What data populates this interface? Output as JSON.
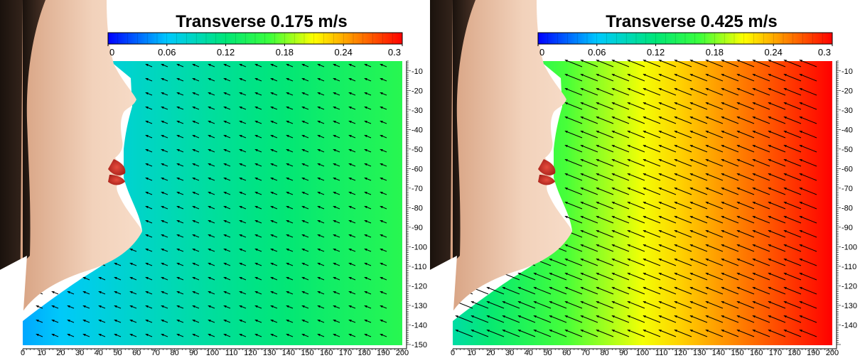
{
  "chart_data": [
    {
      "type": "heatmap",
      "title": "Transverse 0.175 m/s",
      "colorbar": {
        "ticks": [
          "0",
          "0.06",
          "0.12",
          "0.18",
          "0.24",
          "0.3"
        ],
        "range": [
          0,
          0.3
        ]
      },
      "x_ticks": [
        "0",
        "10",
        "20",
        "30",
        "40",
        "50",
        "60",
        "70",
        "80",
        "90",
        "100",
        "110",
        "120",
        "130",
        "140",
        "150",
        "160",
        "170",
        "180",
        "190",
        "200"
      ],
      "y_ticks": [
        "-10",
        "-20",
        "-30",
        "-40",
        "-50",
        "-60",
        "-70",
        "-80",
        "-90",
        "-100",
        "-110",
        "-120",
        "-130",
        "-140",
        "-150"
      ],
      "xlim": [
        0,
        200
      ],
      "ylim": [
        -150,
        -5
      ],
      "field_velocity_range": [
        0.05,
        0.15
      ],
      "vector_field": "arrows pointing up-left toward the nose, short magnitude",
      "colors": [
        "#0000ff",
        "#00c8ff",
        "#00ff60",
        "#ffff00",
        "#ff8000",
        "#ff0000"
      ]
    },
    {
      "type": "heatmap",
      "title": "Transverse 0.425 m/s",
      "colorbar": {
        "ticks": [
          "0",
          "0.06",
          "0.12",
          "0.18",
          "0.24",
          "0.3"
        ],
        "range": [
          0,
          0.3
        ]
      },
      "x_ticks": [
        "0",
        "10",
        "20",
        "30",
        "40",
        "50",
        "60",
        "70",
        "80",
        "90",
        "100",
        "110",
        "120",
        "130",
        "140",
        "150",
        "160",
        "170",
        "180",
        "190",
        "200"
      ],
      "y_ticks": [
        "-10",
        "-20",
        "-30",
        "-40",
        "-50",
        "-60",
        "-70",
        "-80",
        "-90",
        "-100",
        "-110",
        "-120",
        "-130",
        "-140"
      ],
      "xlim": [
        0,
        200
      ],
      "ylim": [
        -150,
        -5
      ],
      "field_velocity_range": [
        0.1,
        0.3
      ],
      "vector_field": "long arrows pointing up-left toward the face",
      "colors": [
        "#0000ff",
        "#00c8ff",
        "#00ff60",
        "#ffff00",
        "#ff8000",
        "#ff0000"
      ]
    }
  ]
}
